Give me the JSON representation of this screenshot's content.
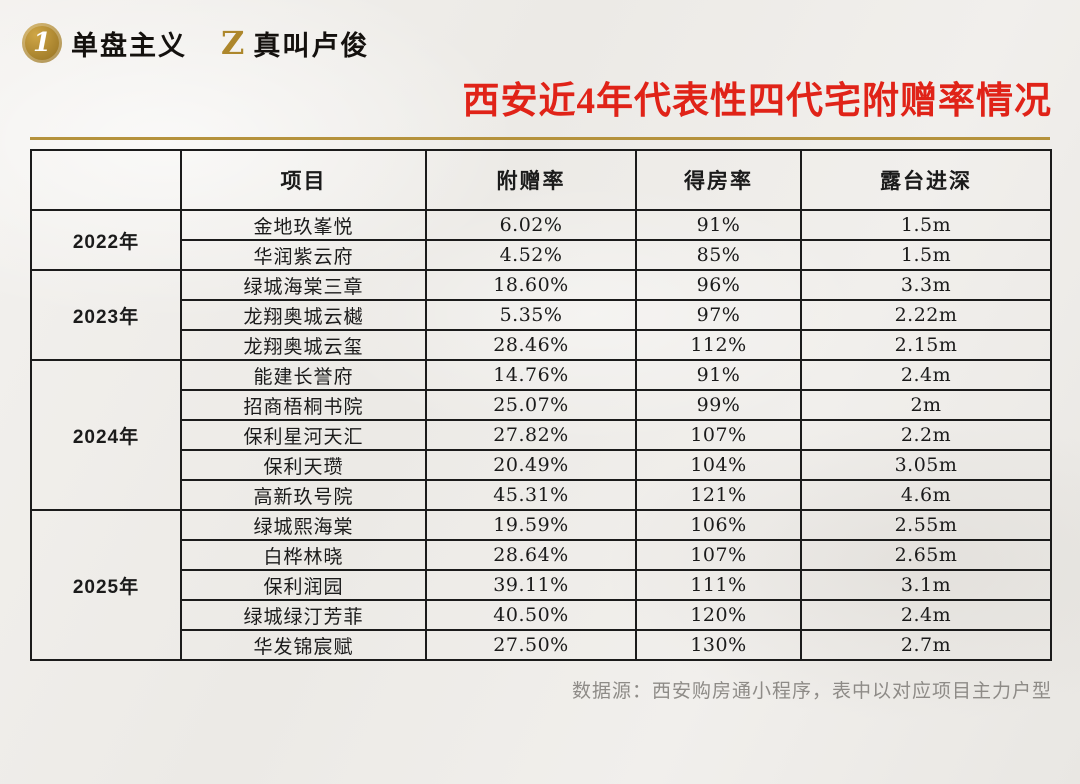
{
  "header": {
    "brand1": {
      "icon": "1",
      "icon_name": "gold-coin-1-icon",
      "label": "单盘主义"
    },
    "brand2": {
      "icon": "Z",
      "icon_name": "gold-z-icon",
      "label": "真叫卢俊"
    }
  },
  "title": "西安近4年代表性四代宅附赠率情况",
  "footer": "数据源：西安购房通小程序，表中以对应项目主力户型",
  "colors": {
    "title_red": "#e02318",
    "gold": "#b5923c",
    "ink": "#1b1b1b",
    "footer_gray": "#8e8b87"
  },
  "chart_data": {
    "type": "table",
    "title": "西安近4年代表性四代宅附赠率情况",
    "columns": [
      "项目",
      "附赠率",
      "得房率",
      "露台进深"
    ],
    "groups": [
      {
        "year": "2022年",
        "rows": [
          [
            "金地玖峯悦",
            "6.02%",
            "91%",
            "1.5m"
          ],
          [
            "华润紫云府",
            "4.52%",
            "85%",
            "1.5m"
          ]
        ]
      },
      {
        "year": "2023年",
        "rows": [
          [
            "绿城海棠三章",
            "18.60%",
            "96%",
            "3.3m"
          ],
          [
            "龙翔奥城云樾",
            "5.35%",
            "97%",
            "2.22m"
          ],
          [
            "龙翔奥城云玺",
            "28.46%",
            "112%",
            "2.15m"
          ]
        ]
      },
      {
        "year": "2024年",
        "rows": [
          [
            "能建长誉府",
            "14.76%",
            "91%",
            "2.4m"
          ],
          [
            "招商梧桐书院",
            "25.07%",
            "99%",
            "2m"
          ],
          [
            "保利星河天汇",
            "27.82%",
            "107%",
            "2.2m"
          ],
          [
            "保利天瓒",
            "20.49%",
            "104%",
            "3.05m"
          ],
          [
            "高新玖号院",
            "45.31%",
            "121%",
            "4.6m"
          ]
        ]
      },
      {
        "year": "2025年",
        "rows": [
          [
            "绿城熙海棠",
            "19.59%",
            "106%",
            "2.55m"
          ],
          [
            "白桦林晓",
            "28.64%",
            "107%",
            "2.65m"
          ],
          [
            "保利润园",
            "39.11%",
            "111%",
            "3.1m"
          ],
          [
            "绿城绿汀芳菲",
            "40.50%",
            "120%",
            "2.4m"
          ],
          [
            "华发锦宸赋",
            "27.50%",
            "130%",
            "2.7m"
          ]
        ]
      }
    ]
  }
}
